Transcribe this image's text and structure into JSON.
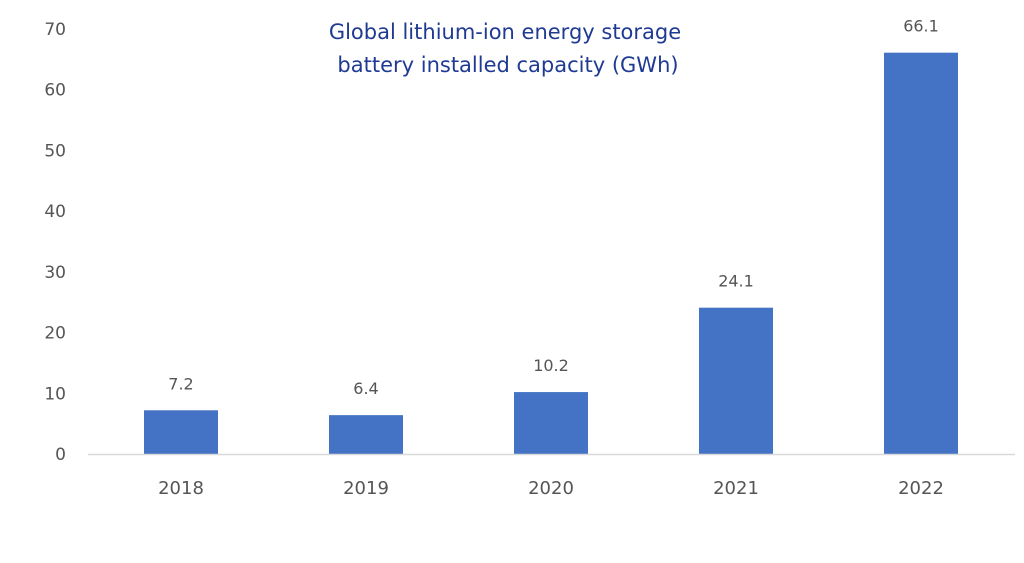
{
  "chart_data": {
    "type": "bar",
    "title_lines": [
      "Global lithium-ion energy storage",
      "battery installed capacity (GWh)"
    ],
    "categories": [
      "2018",
      "2019",
      "2020",
      "2021",
      "2022"
    ],
    "values": [
      7.2,
      6.4,
      10.2,
      24.1,
      66.1
    ],
    "value_labels": [
      "7.2",
      "6.4",
      "10.2",
      "24.1",
      "66.1"
    ],
    "y_ticks": [
      "0",
      "10",
      "20",
      "30",
      "40",
      "50",
      "60",
      "70"
    ],
    "ylim": [
      0,
      70
    ],
    "grid": false,
    "legend": "none",
    "xlabel": "",
    "ylabel": "",
    "bar_color": "#4472c4",
    "title_color": "#1f3a93",
    "axis_color": "#d9d9d9",
    "text_color": "#555555"
  }
}
